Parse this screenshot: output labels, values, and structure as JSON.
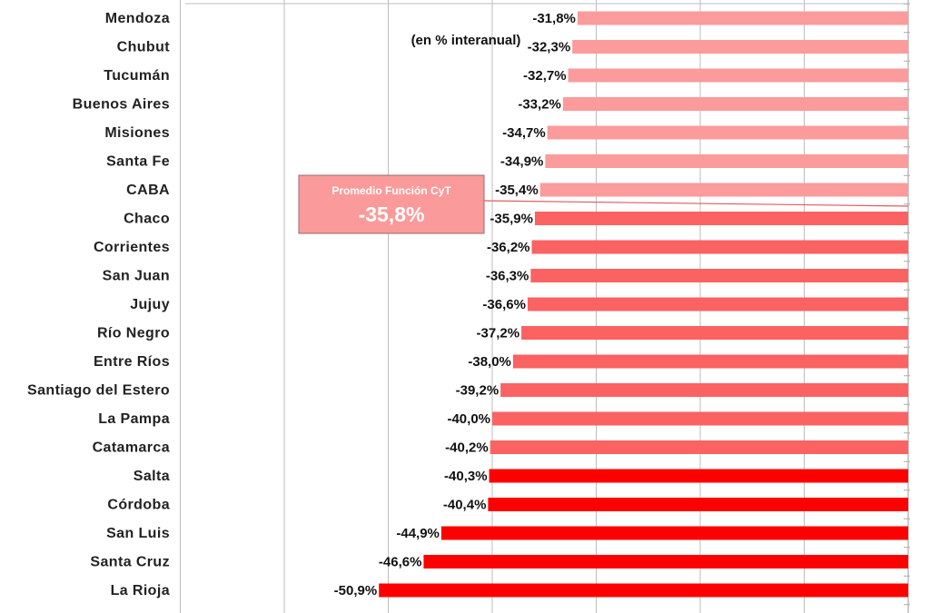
{
  "chart_data": {
    "type": "bar",
    "orientation": "horizontal",
    "subtitle": "(en % interanual)",
    "categories": [
      "Mendoza",
      "Chubut",
      "Tucumán",
      "Buenos Aires",
      "Misiones",
      "Santa Fe",
      "CABA",
      "Chaco",
      "Corrientes",
      "San Juan",
      "Jujuy",
      "Río Negro",
      "Entre Ríos",
      "Santiago del Estero",
      "La Pampa",
      "Catamarca",
      "Salta",
      "Córdoba",
      "San Luis",
      "Santa Cruz",
      "La Rioja"
    ],
    "values": [
      -31.8,
      -32.3,
      -32.7,
      -33.2,
      -34.7,
      -34.9,
      -35.4,
      -35.9,
      -36.2,
      -36.3,
      -36.6,
      -37.2,
      -38.0,
      -39.2,
      -40.0,
      -40.2,
      -40.3,
      -40.4,
      -44.9,
      -46.6,
      -50.9
    ],
    "value_labels": [
      "-31,8%",
      "-32,3%",
      "-32,7%",
      "-33,2%",
      "-34,7%",
      "-34,9%",
      "-35,4%",
      "-35,9%",
      "-36,2%",
      "-36,3%",
      "-36,6%",
      "-37,2%",
      "-38,0%",
      "-39,2%",
      "-40,0%",
      "-40,2%",
      "-40,3%",
      "-40,4%",
      "-44,9%",
      "-46,6%",
      "-50,9%"
    ],
    "xlim": [
      -70,
      0
    ],
    "grid": true,
    "legend": "none",
    "average": {
      "label": "Promedio Función CyT",
      "value": -35.8,
      "value_label": "-35,8%"
    },
    "colors": {
      "light": "#fb9b9b",
      "medium": "#fb6262",
      "strong": "#fd0000",
      "gridline": "#bdbdbd",
      "average_box": "#fb9a9a",
      "average_border": "#9a6a6a"
    }
  }
}
